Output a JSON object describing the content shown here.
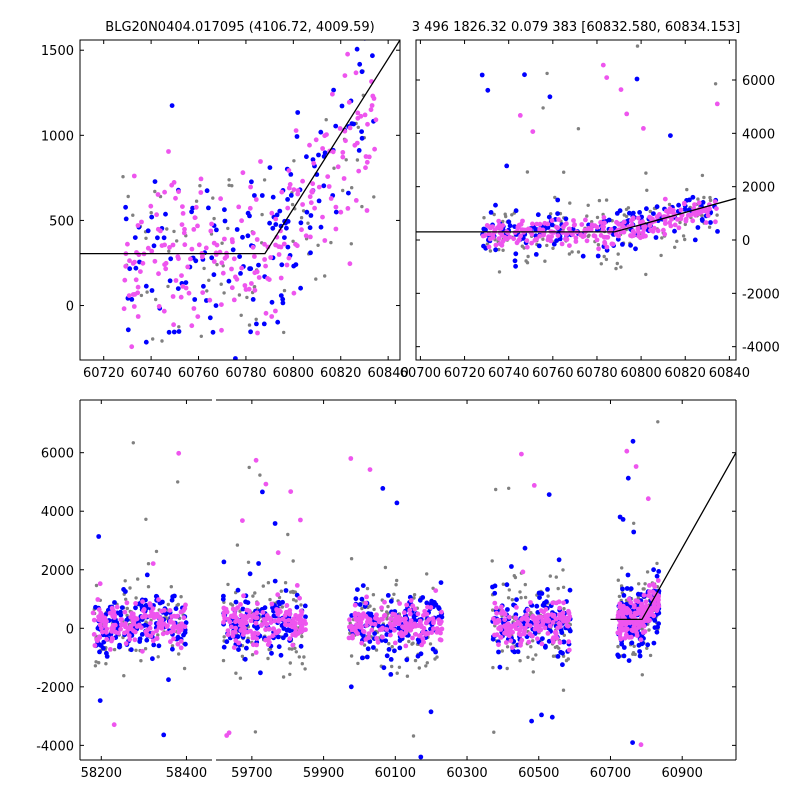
{
  "header": {
    "left_title": "BLG20N0404.017095 (4106.72, 4009.59)",
    "right_title": "3 496 1826.32 0.079 383 [60832.580, 60834.153]"
  },
  "colors": {
    "series_a": "#0000ff",
    "series_b": "#808080",
    "series_c": "#ee55ee",
    "model": "#000000"
  },
  "chart_data": [
    {
      "type": "scatter",
      "panel": "top-left zoom",
      "xlim": [
        60710,
        60845
      ],
      "ylim": [
        -320,
        1560
      ],
      "x_ticks": [
        "60720",
        "60740",
        "60760",
        "60780",
        "60800",
        "60820",
        "60840"
      ],
      "y_ticks": [
        "0",
        "500",
        "1000",
        "1500"
      ],
      "y_axis_side": "left",
      "model_line": [
        [
          60710,
          305
        ],
        [
          60788,
          305
        ],
        [
          60845,
          1560
        ]
      ],
      "series": [
        {
          "color_key": "series_a",
          "style": "blue points",
          "x_range": [
            60728,
            60835
          ],
          "n_points": 150
        },
        {
          "color_key": "series_b",
          "style": "gray points",
          "x_range": [
            60728,
            60835
          ],
          "n_points": 90
        },
        {
          "color_key": "series_c",
          "style": "magenta points",
          "x_range": [
            60728,
            60835
          ],
          "n_points": 230
        }
      ]
    },
    {
      "type": "scatter",
      "panel": "top-right zoom",
      "xlim": [
        60698,
        60843
      ],
      "ylim": [
        -4500,
        7500
      ],
      "x_ticks": [
        "60700",
        "60720",
        "60740",
        "60760",
        "60780",
        "60800",
        "60820",
        "60840"
      ],
      "y_ticks": [
        "-4000",
        "-2000",
        "0",
        "2000",
        "4000",
        "6000"
      ],
      "y_axis_side": "right",
      "model_line": [
        [
          60698,
          305
        ],
        [
          60788,
          305
        ],
        [
          60843,
          1560
        ]
      ],
      "series": [
        {
          "color_key": "series_b",
          "style": "gray points",
          "x_range": [
            60728,
            60835
          ],
          "n_points": 150
        },
        {
          "color_key": "series_a",
          "style": "blue points",
          "x_range": [
            60728,
            60835
          ],
          "n_points": 170
        },
        {
          "color_key": "series_c",
          "style": "magenta points",
          "x_range": [
            60728,
            60835
          ],
          "n_points": 260
        }
      ]
    },
    {
      "type": "scatter",
      "panel": "bottom full light curve (broken x-axis)",
      "ylim": [
        -4500,
        7800
      ],
      "y_ticks": [
        "-4000",
        "-2000",
        "0",
        "2000",
        "4000",
        "6000"
      ],
      "y_axis_side": "left",
      "segments": [
        {
          "xlim": [
            58150,
            58460
          ],
          "x_ticks": [
            "58200",
            "58400"
          ],
          "data_x_range": [
            58180,
            58400
          ]
        },
        {
          "xlim": [
            59600,
            61050
          ],
          "x_ticks": [
            "59700",
            "59900",
            "60100",
            "60300",
            "60500",
            "60700",
            "60900"
          ],
          "seasons": [
            [
              59620,
              59850
            ],
            [
              59970,
              60230
            ],
            [
              60370,
              60590
            ],
            [
              60720,
              60835
            ]
          ]
        }
      ],
      "model_line": [
        [
          60700,
          305
        ],
        [
          60788,
          305
        ],
        [
          61050,
          6000
        ]
      ],
      "series": [
        {
          "color_key": "series_b",
          "style": "gray points",
          "n_points_per_season": 110
        },
        {
          "color_key": "series_a",
          "style": "blue points",
          "n_points_per_season": 140
        },
        {
          "color_key": "series_c",
          "style": "magenta points",
          "n_points_per_season": 170
        }
      ]
    }
  ]
}
